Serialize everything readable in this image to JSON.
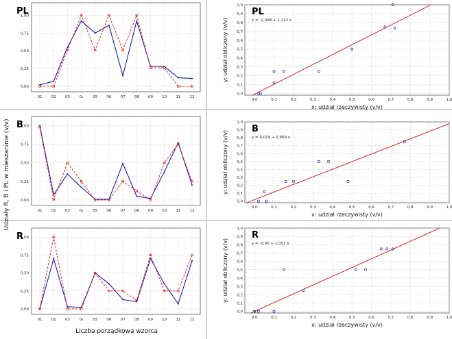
{
  "colors": {
    "observed": "#1b1bb0",
    "calculated": "#e02020",
    "regression": "#cc1111",
    "grid": "#b9b9b9"
  },
  "left_axis": {
    "ylabel": "Udziały R, B i PL w mieszaninie (v/v)",
    "xlabel": "Liczba porządkowa wzorca"
  },
  "chart_data": [
    {
      "type": "line",
      "label": "PL",
      "categories": [
        "01",
        "02",
        "03",
        "0₄",
        "05",
        "06",
        "07",
        "08",
        "09",
        "10",
        "11",
        "12"
      ],
      "ylim": [
        0,
        2.5
      ],
      "yticks": [
        "0,00",
        "0,25",
        "0,50",
        "0,75",
        "1,00",
        "1,25",
        "1,50",
        "1,75",
        "2,00",
        "2,25",
        "2,50"
      ],
      "grid": true,
      "series": [
        {
          "style": "solid",
          "values": [
            0.02,
            0.07,
            0.55,
            0.92,
            0.75,
            0.86,
            0.15,
            0.92,
            0.28,
            0.28,
            0.12,
            0.11
          ]
        },
        {
          "style": "dashed",
          "values": [
            0.0,
            0.0,
            0.51,
            1.0,
            0.51,
            1.0,
            0.51,
            1.0,
            0.26,
            0.26,
            0.0,
            0.0
          ]
        }
      ]
    },
    {
      "type": "scatter",
      "label": "PL",
      "xlabel": "x:  udział rzeczywisty (v/v)",
      "ylabel": "y:  udział obliczony (v/v)",
      "equation": "y = -0,008 + 1,113 x",
      "xlim": [
        -0.05,
        1.0
      ],
      "ylim": [
        -0.02,
        1.0
      ],
      "xticks": [
        "0,0",
        "0,1",
        "0,2",
        "0,3",
        "0,4",
        "0,5",
        "0,6",
        "0,7",
        "0,8",
        "0,9",
        "1,0"
      ],
      "yticks": [
        "0,0",
        "0,1",
        "0,2",
        "0,3",
        "0,4",
        "0,5",
        "0,6",
        "0,7",
        "0,8",
        "0,9",
        "1,0"
      ],
      "grid": true,
      "regression": {
        "intercept": -0.008,
        "slope": 1.113
      },
      "points": [
        {
          "x": 0.02,
          "y": 0.0
        },
        {
          "x": 0.03,
          "y": 0.0
        },
        {
          "x": 0.1,
          "y": 0.12
        },
        {
          "x": 0.1,
          "y": 0.25
        },
        {
          "x": 0.15,
          "y": 0.25
        },
        {
          "x": 0.33,
          "y": 0.25
        },
        {
          "x": 0.5,
          "y": 0.5
        },
        {
          "x": 0.67,
          "y": 0.75
        },
        {
          "x": 0.72,
          "y": 0.74
        },
        {
          "x": 0.71,
          "y": 1.0
        }
      ]
    },
    {
      "type": "line",
      "label": "B",
      "categories": [
        "01",
        "02",
        "03",
        "0₄",
        "05",
        "06",
        "07",
        "08",
        "09",
        "10",
        "11",
        "12"
      ],
      "ylim": [
        0,
        1.0
      ],
      "yticks": [
        "0,00",
        "0,25",
        "0,50",
        "0,75",
        "1,00"
      ],
      "grid": true,
      "series": [
        {
          "style": "solid",
          "values": [
            1.0,
            0.07,
            0.35,
            0.17,
            0.01,
            0.01,
            0.49,
            0.05,
            0.02,
            0.38,
            0.77,
            0.2
          ]
        },
        {
          "style": "dashed",
          "values": [
            0.98,
            0.01,
            0.5,
            0.25,
            0.0,
            0.0,
            0.25,
            0.12,
            0.0,
            0.5,
            0.75,
            0.25
          ]
        }
      ]
    },
    {
      "type": "scatter",
      "label": "B",
      "xlabel": "x:  udział rzeczywisty (v/v)",
      "ylabel": "y:  udział obliczony (v/v)",
      "equation": "y = 0,019 + 0,959 x",
      "xlim": [
        -0.05,
        1.0
      ],
      "ylim": [
        -0.02,
        1.0
      ],
      "xticks": [
        "0,0",
        "0,1",
        "0,2",
        "0,3",
        "0,4",
        "0,5",
        "0,6",
        "0,7",
        "0,8",
        "0,9",
        "1,0"
      ],
      "yticks": [
        "0,0",
        "0,1",
        "0,2",
        "0,3",
        "0,4",
        "0,5",
        "0,6",
        "0,7",
        "0,8",
        "0,9",
        "1,0"
      ],
      "grid": true,
      "regression": {
        "intercept": 0.019,
        "slope": 0.959
      },
      "points": [
        {
          "x": 0.02,
          "y": 0.0
        },
        {
          "x": 0.05,
          "y": 0.12
        },
        {
          "x": 0.06,
          "y": 0.0
        },
        {
          "x": 0.16,
          "y": 0.25
        },
        {
          "x": 0.2,
          "y": 0.25
        },
        {
          "x": 0.33,
          "y": 0.5
        },
        {
          "x": 0.38,
          "y": 0.5
        },
        {
          "x": 0.48,
          "y": 0.25
        },
        {
          "x": 0.77,
          "y": 0.75
        }
      ]
    },
    {
      "type": "line",
      "label": "R",
      "categories": [
        "01",
        "02",
        "03",
        "0₄",
        "05",
        "06",
        "07",
        "08",
        "09",
        "10",
        "11",
        "12"
      ],
      "ylim": [
        0,
        1.0
      ],
      "yticks": [
        "0,00",
        "0,25",
        "0,50",
        "0,75",
        "1,00"
      ],
      "grid": true,
      "series": [
        {
          "style": "solid",
          "values": [
            0.0,
            0.7,
            0.03,
            0.02,
            0.5,
            0.35,
            0.13,
            0.1,
            0.7,
            0.35,
            0.07,
            0.67
          ]
        },
        {
          "style": "dashed",
          "values": [
            0.0,
            1.0,
            0.0,
            0.0,
            0.5,
            0.25,
            0.25,
            0.12,
            0.75,
            0.25,
            0.25,
            0.75
          ]
        }
      ]
    },
    {
      "type": "scatter",
      "label": "R",
      "xlabel": "x:  udział rzeczywisty (v/v)",
      "ylabel": "y:  udział obliczony (v/v)",
      "equation": "y = -0,00 + 1,051 x",
      "xlim": [
        -0.05,
        1.0
      ],
      "ylim": [
        -0.02,
        1.0
      ],
      "xticks": [
        "0,0",
        "0,1",
        "0,2",
        "0,3",
        "0,4",
        "0,5",
        "0,6",
        "0,7",
        "0,8",
        "0,9",
        "1,0"
      ],
      "yticks": [
        "0,0",
        "0,1",
        "0,2",
        "0,3",
        "0,4",
        "0,5",
        "0,6",
        "0,7",
        "0,8",
        "0,9",
        "1,0"
      ],
      "grid": true,
      "regression": {
        "intercept": -0.0,
        "slope": 1.051
      },
      "points": [
        {
          "x": 0.0,
          "y": 0.0
        },
        {
          "x": 0.02,
          "y": 0.0
        },
        {
          "x": 0.1,
          "y": 0.0
        },
        {
          "x": 0.15,
          "y": 0.5
        },
        {
          "x": 0.25,
          "y": 0.25
        },
        {
          "x": 0.52,
          "y": 0.5
        },
        {
          "x": 0.57,
          "y": 0.5
        },
        {
          "x": 0.65,
          "y": 0.75
        },
        {
          "x": 0.68,
          "y": 0.75
        },
        {
          "x": 0.71,
          "y": 0.75
        }
      ]
    }
  ]
}
